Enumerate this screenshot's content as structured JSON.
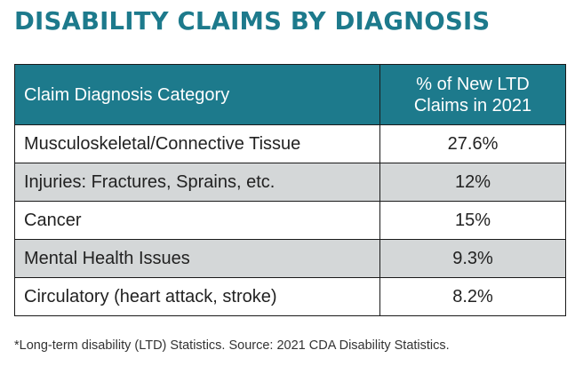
{
  "title": "DISABILITY CLAIMS BY DIAGNOSIS",
  "footnote": "*Long-term disability (LTD) Statistics. Source: 2021 CDA Disability Statistics.",
  "colors": {
    "header_bg": "#1d7a8c",
    "title": "#1d7a8c",
    "stripe": "#d4d7d8"
  },
  "chart_data": {
    "type": "table",
    "title": "DISABILITY CLAIMS BY DIAGNOSIS",
    "columns": [
      "Claim Diagnosis Category",
      "% of New LTD Claims in 2021"
    ],
    "rows": [
      {
        "category": "Musculoskeletal/Connective Tissue",
        "value": "27.6%"
      },
      {
        "category": "Injuries: Fractures, Sprains, etc.",
        "value": "12%"
      },
      {
        "category": "Cancer",
        "value": "15%"
      },
      {
        "category": "Mental Health Issues",
        "value": "9.3%"
      },
      {
        "category": "Circulatory (heart attack, stroke)",
        "value": "8.2%"
      }
    ]
  }
}
